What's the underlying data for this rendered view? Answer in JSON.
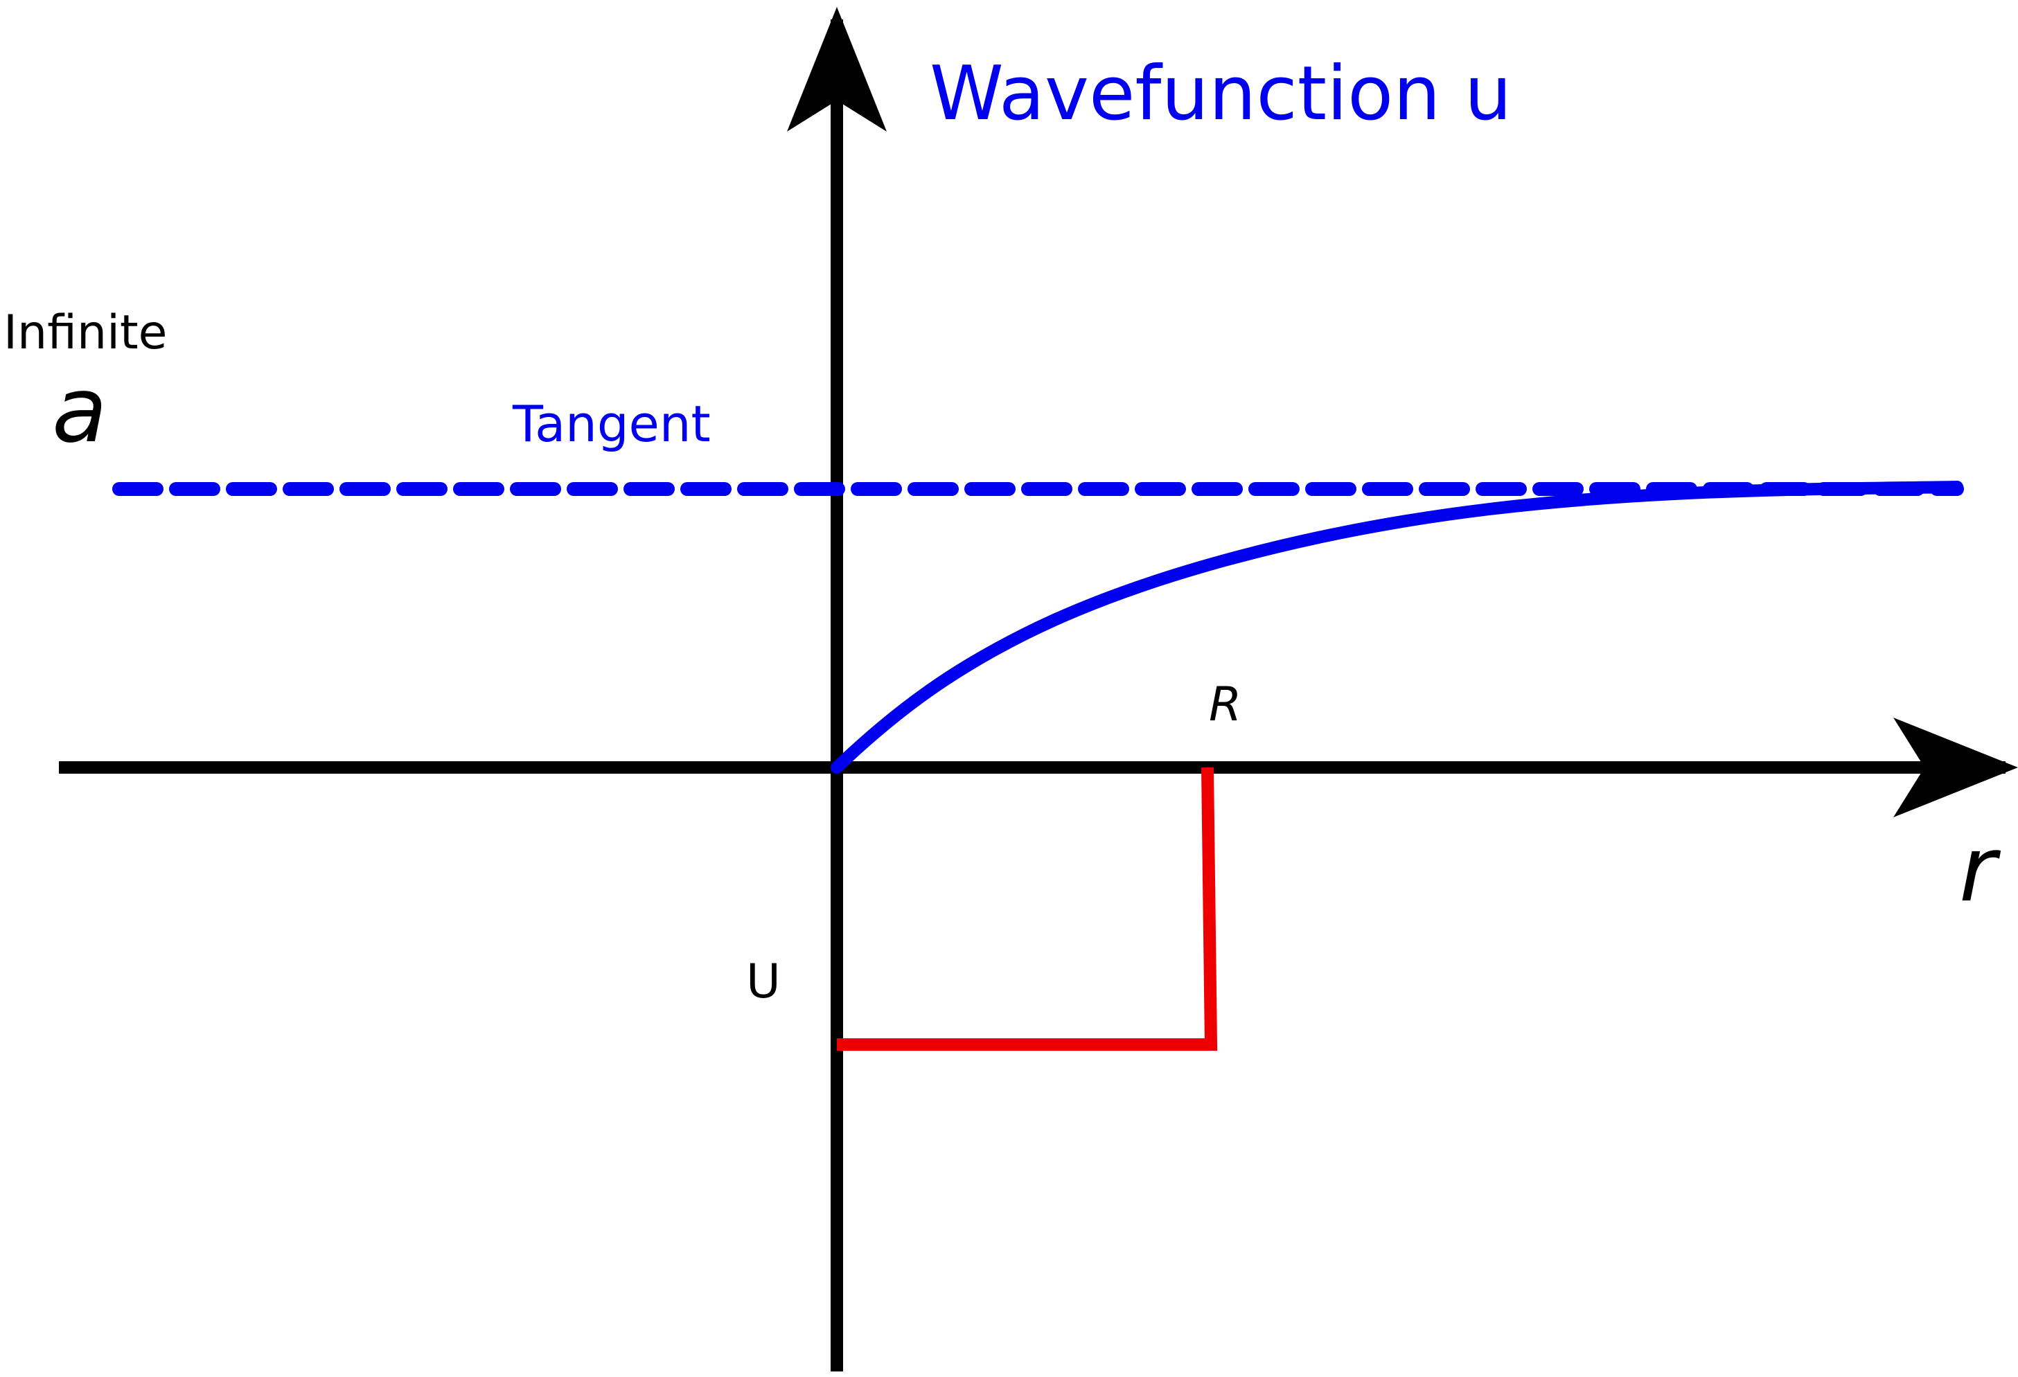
{
  "title": "Wavefunction u",
  "labels": {
    "infinite": "Infinite",
    "a": "a",
    "tangent": "Tangent",
    "R": "R",
    "r": "r",
    "U": "U"
  },
  "colors": {
    "axis": "#000000",
    "wavefunction": "#0000ee",
    "potential": "#ee0000",
    "background": "#ffffff"
  }
}
